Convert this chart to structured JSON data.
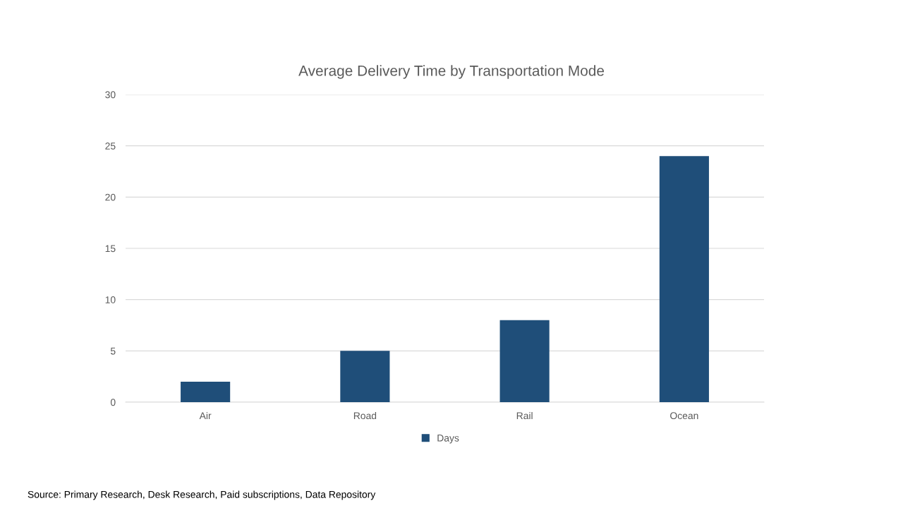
{
  "chart_data": {
    "type": "bar",
    "title": "Average Delivery Time by Transportation Mode",
    "categories": [
      "Air",
      "Road",
      "Rail",
      "Ocean"
    ],
    "series": [
      {
        "name": "Days",
        "color": "#1f4e79",
        "values": [
          2,
          5,
          8,
          24
        ]
      }
    ],
    "ylim": [
      0,
      30
    ],
    "yticks": [
      0,
      5,
      10,
      15,
      20,
      25,
      30
    ],
    "grid": "y",
    "legend": "bottom",
    "annotations": [
      "Source: Primary Research, Desk Research, Paid subscriptions, Data Repository"
    ]
  }
}
